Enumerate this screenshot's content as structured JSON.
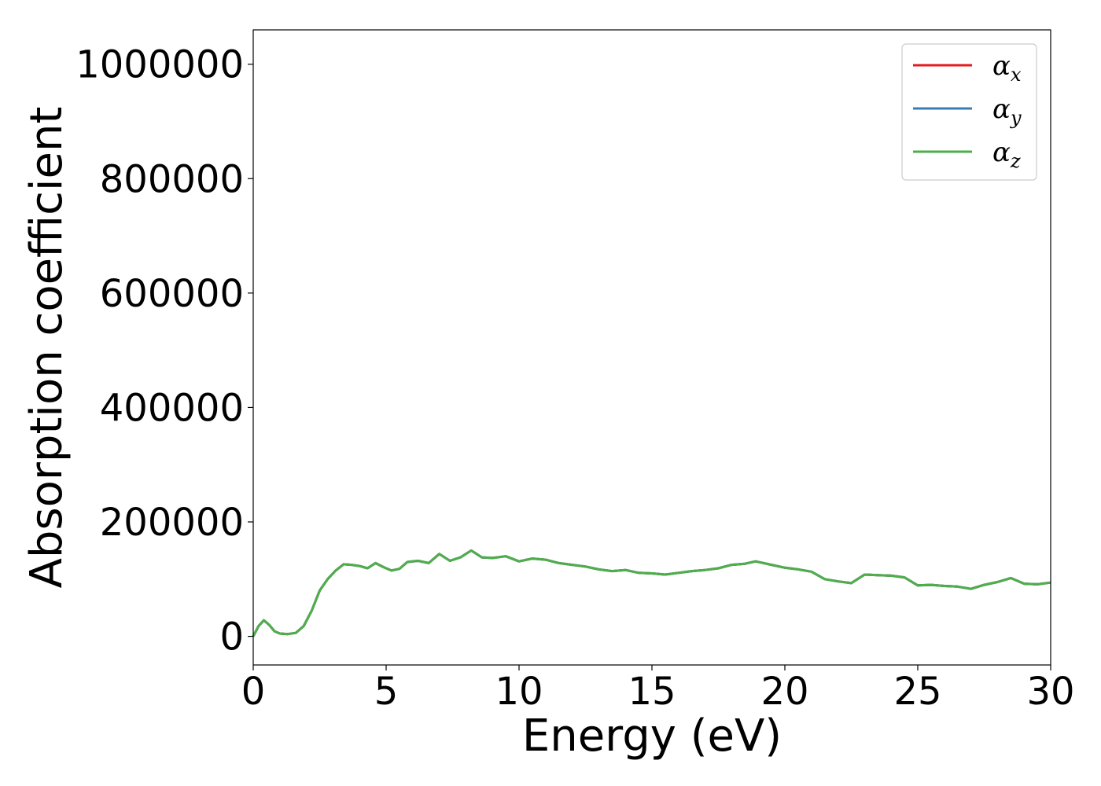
{
  "chart_data": {
    "type": "line",
    "xlabel": "Energy (eV)",
    "ylabel": "Absorption coefficient",
    "xlim": [
      0,
      30
    ],
    "ylim": [
      -50000,
      1060000
    ],
    "xticks": [
      0,
      5,
      10,
      15,
      20,
      25,
      30
    ],
    "yticks": [
      0,
      200000,
      400000,
      600000,
      800000,
      1000000
    ],
    "grid": false,
    "legend_position": "top-right",
    "series": [
      {
        "name": "α",
        "name_sub": "x",
        "color": "#e41a1c",
        "x": [
          0,
          0.2,
          0.4,
          0.6,
          0.8,
          1.0,
          1.3,
          1.6,
          1.9,
          2.2,
          2.5,
          2.8,
          3.1,
          3.4,
          3.7,
          4.0,
          4.3,
          4.6,
          4.9,
          5.2,
          5.5,
          5.8,
          6.2,
          6.6,
          7.0,
          7.4,
          7.8,
          8.2,
          8.6,
          9.0,
          9.5,
          10.0,
          10.5,
          11.0,
          11.5,
          12.0,
          12.5,
          13.0,
          13.5,
          14.0,
          14.5,
          15.0,
          15.5,
          16.0,
          16.5,
          17.0,
          17.5,
          18.0,
          18.5,
          18.9,
          19.5,
          20.0,
          20.5,
          21.0,
          21.5,
          22.0,
          22.5,
          23.0,
          23.5,
          24.0,
          24.5,
          25.0,
          25.5,
          26.0,
          26.5,
          27.0,
          27.5,
          28.0,
          28.5,
          29.0,
          29.5,
          30.0
        ],
        "y": [
          0,
          18000,
          28000,
          20000,
          9000,
          5000,
          4000,
          6000,
          18000,
          45000,
          80000,
          100000,
          115000,
          126000,
          125000,
          123000,
          119000,
          128000,
          121000,
          115000,
          118000,
          130000,
          132000,
          128000,
          144000,
          132000,
          138000,
          150000,
          138000,
          137000,
          140000,
          131000,
          136000,
          134000,
          128000,
          125000,
          122000,
          117000,
          114000,
          116000,
          111000,
          110000,
          108000,
          111000,
          114000,
          116000,
          119000,
          125000,
          127000,
          131000,
          125000,
          120000,
          117000,
          113000,
          100000,
          96000,
          93000,
          108000,
          107000,
          106000,
          103000,
          89000,
          90000,
          88000,
          87000,
          83000,
          90000,
          95000,
          102000,
          92000,
          91000,
          94000
        ]
      },
      {
        "name": "α",
        "name_sub": "y",
        "color": "#377eb8",
        "x": [
          0,
          0.2,
          0.4,
          0.6,
          0.8,
          1.0,
          1.3,
          1.6,
          1.9,
          2.2,
          2.5,
          2.8,
          3.1,
          3.4,
          3.7,
          4.0,
          4.3,
          4.6,
          4.9,
          5.2,
          5.5,
          5.8,
          6.2,
          6.6,
          7.0,
          7.4,
          7.8,
          8.2,
          8.6,
          9.0,
          9.5,
          10.0,
          10.5,
          11.0,
          11.5,
          12.0,
          12.5,
          13.0,
          13.5,
          14.0,
          14.5,
          15.0,
          15.5,
          16.0,
          16.5,
          17.0,
          17.5,
          18.0,
          18.5,
          18.9,
          19.5,
          20.0,
          20.5,
          21.0,
          21.5,
          22.0,
          22.5,
          23.0,
          23.5,
          24.0,
          24.5,
          25.0,
          25.5,
          26.0,
          26.5,
          27.0,
          27.5,
          28.0,
          28.5,
          29.0,
          29.5,
          30.0
        ],
        "y": [
          0,
          18000,
          28000,
          20000,
          9000,
          5000,
          4000,
          6000,
          18000,
          45000,
          80000,
          100000,
          115000,
          126000,
          125000,
          123000,
          119000,
          128000,
          121000,
          115000,
          118000,
          130000,
          132000,
          128000,
          144000,
          132000,
          138000,
          150000,
          138000,
          137000,
          140000,
          131000,
          136000,
          134000,
          128000,
          125000,
          122000,
          117000,
          114000,
          116000,
          111000,
          110000,
          108000,
          111000,
          114000,
          116000,
          119000,
          125000,
          127000,
          131000,
          125000,
          120000,
          117000,
          113000,
          100000,
          96000,
          93000,
          108000,
          107000,
          106000,
          103000,
          89000,
          90000,
          88000,
          87000,
          83000,
          90000,
          95000,
          102000,
          92000,
          91000,
          94000
        ]
      },
      {
        "name": "α",
        "name_sub": "z",
        "color": "#4daf4a",
        "x": [
          0,
          0.2,
          0.4,
          0.6,
          0.8,
          1.0,
          1.3,
          1.6,
          1.9,
          2.2,
          2.5,
          2.8,
          3.1,
          3.4,
          3.7,
          4.0,
          4.3,
          4.6,
          4.9,
          5.2,
          5.5,
          5.8,
          6.2,
          6.6,
          7.0,
          7.4,
          7.8,
          8.2,
          8.6,
          9.0,
          9.5,
          10.0,
          10.5,
          11.0,
          11.5,
          12.0,
          12.5,
          13.0,
          13.5,
          14.0,
          14.5,
          15.0,
          15.5,
          16.0,
          16.5,
          17.0,
          17.5,
          18.0,
          18.5,
          18.9,
          19.5,
          20.0,
          20.5,
          21.0,
          21.5,
          22.0,
          22.5,
          23.0,
          23.5,
          24.0,
          24.5,
          25.0,
          25.5,
          26.0,
          26.5,
          27.0,
          27.5,
          28.0,
          28.5,
          29.0,
          29.5,
          30.0
        ],
        "y": [
          0,
          18000,
          28000,
          20000,
          9000,
          5000,
          4000,
          6000,
          18000,
          45000,
          80000,
          100000,
          115000,
          126000,
          125000,
          123000,
          119000,
          128000,
          121000,
          115000,
          118000,
          130000,
          132000,
          128000,
          144000,
          132000,
          138000,
          150000,
          138000,
          137000,
          140000,
          131000,
          136000,
          134000,
          128000,
          125000,
          122000,
          117000,
          114000,
          116000,
          111000,
          110000,
          108000,
          111000,
          114000,
          116000,
          119000,
          125000,
          127000,
          131000,
          125000,
          120000,
          117000,
          113000,
          100000,
          96000,
          93000,
          108000,
          107000,
          106000,
          103000,
          89000,
          90000,
          88000,
          87000,
          83000,
          90000,
          95000,
          102000,
          92000,
          91000,
          94000
        ]
      }
    ]
  }
}
